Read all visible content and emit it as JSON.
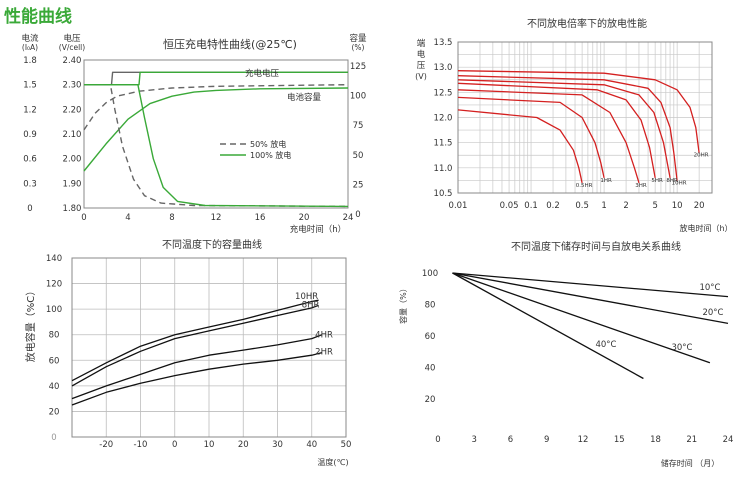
{
  "page_title": "性能曲线",
  "chart_data": [
    {
      "id": "c1",
      "type": "line",
      "title": "恒压充电特性曲线(@25℃)",
      "xlabel": "充电时间（h）",
      "x_ticks": [
        0,
        4,
        8,
        12,
        16,
        20,
        24
      ],
      "xlim": [
        0,
        24
      ],
      "left_axis1": {
        "label_lines": [
          "电流",
          "(I₀A)"
        ],
        "ticks": [
          "1.8",
          "1.5",
          "1.2",
          "0.9",
          "0.6",
          "0.3",
          "0"
        ],
        "range": [
          0,
          1.8
        ]
      },
      "left_axis2": {
        "label_lines": [
          "电压",
          "(V/cell)"
        ],
        "ticks": [
          "2.40",
          "2.30",
          "2.20",
          "2.10",
          "2.00",
          "1.90",
          "1.80"
        ],
        "range": [
          1.8,
          2.4
        ]
      },
      "right_axis": {
        "label_lines": [
          "容量",
          "(%)"
        ],
        "ticks": [
          "125",
          "100",
          "75",
          "50",
          "25",
          "0"
        ],
        "range": [
          0,
          125
        ]
      },
      "annotations": [
        "充电电压",
        "电池容量"
      ],
      "legend": [
        {
          "name": "50% 放电",
          "style": "dashed"
        },
        {
          "name": "100% 放电",
          "style": "solid"
        }
      ],
      "series": [
        {
          "name": "充电电压",
          "axis": "current",
          "color": "#666666",
          "style": "solid",
          "points": [
            [
              0,
              1.5
            ],
            [
              2.5,
              1.5
            ],
            [
              2.6,
              1.65
            ],
            [
              24,
              1.65
            ]
          ]
        },
        {
          "name": "充电电压",
          "axis": "current",
          "color": "#3aa938",
          "style": "solid",
          "points": [
            [
              0,
              1.5
            ],
            [
              5,
              1.5
            ],
            [
              5.1,
              1.65
            ],
            [
              24,
              1.65
            ]
          ]
        },
        {
          "name": "电池容量",
          "axis": "current",
          "color": "#666666",
          "style": "dashed",
          "points": [
            [
              0,
              0.95
            ],
            [
              1,
              1.15
            ],
            [
              2,
              1.28
            ],
            [
              3,
              1.36
            ],
            [
              5,
              1.42
            ],
            [
              8,
              1.46
            ],
            [
              12,
              1.48
            ],
            [
              24,
              1.5
            ]
          ]
        },
        {
          "name": "电池容量",
          "axis": "current",
          "color": "#3aa938",
          "style": "solid",
          "points": [
            [
              0,
              0.45
            ],
            [
              2,
              0.78
            ],
            [
              4,
              1.08
            ],
            [
              6,
              1.27
            ],
            [
              8,
              1.36
            ],
            [
              10,
              1.41
            ],
            [
              12,
              1.43
            ],
            [
              16,
              1.45
            ],
            [
              24,
              1.46
            ]
          ]
        },
        {
          "name": "50% 放电",
          "axis": "current",
          "color": "#666666",
          "style": "dashed",
          "points": [
            [
              0,
              1.5
            ],
            [
              2.4,
              1.5
            ],
            [
              2.8,
              1.2
            ],
            [
              3.5,
              0.75
            ],
            [
              4.5,
              0.35
            ],
            [
              5.5,
              0.15
            ],
            [
              7,
              0.06
            ],
            [
              10,
              0.03
            ],
            [
              24,
              0.02
            ]
          ]
        },
        {
          "name": "100% 放电",
          "axis": "current",
          "color": "#3aa938",
          "style": "solid",
          "points": [
            [
              0,
              1.5
            ],
            [
              4.9,
              1.5
            ],
            [
              5.5,
              1.1
            ],
            [
              6.3,
              0.6
            ],
            [
              7.2,
              0.25
            ],
            [
              8.5,
              0.08
            ],
            [
              11,
              0.03
            ],
            [
              24,
              0.02
            ]
          ]
        }
      ]
    },
    {
      "id": "c2",
      "type": "line",
      "title": "不同放电倍率下的放电性能",
      "xlabel": "放电时间（h）",
      "ylabel_lines": [
        "端",
        "电",
        "压",
        "(V)"
      ],
      "x_scale": "log",
      "xlim": [
        0.01,
        30
      ],
      "x_ticks": [
        {
          "v": 0.01,
          "l": "0.01"
        },
        {
          "v": 0.05,
          "l": "0.05"
        },
        {
          "v": 0.1,
          "l": "0.1"
        },
        {
          "v": 0.2,
          "l": "0.2"
        },
        {
          "v": 0.5,
          "l": "0.5"
        },
        {
          "v": 1,
          "l": "1"
        },
        {
          "v": 2,
          "l": "2"
        },
        {
          "v": 5,
          "l": "5"
        },
        {
          "v": 10,
          "l": "10"
        },
        {
          "v": 20,
          "l": "20"
        }
      ],
      "ylim": [
        10.5,
        13.5
      ],
      "y_ticks": [
        "13.5",
        "13.0",
        "12.5",
        "12.0",
        "11.5",
        "11.0",
        "10.5"
      ],
      "series": [
        {
          "name": "20HR",
          "color": "#d42020",
          "points": [
            [
              0.01,
              12.93
            ],
            [
              1,
              12.88
            ],
            [
              5,
              12.75
            ],
            [
              10,
              12.55
            ],
            [
              15,
              12.2
            ],
            [
              18,
              11.8
            ],
            [
              20,
              11.3
            ]
          ]
        },
        {
          "name": "10HR",
          "color": "#d42020",
          "points": [
            [
              0.01,
              12.83
            ],
            [
              1,
              12.75
            ],
            [
              4,
              12.58
            ],
            [
              6,
              12.3
            ],
            [
              8,
              11.8
            ],
            [
              9,
              11.3
            ],
            [
              10,
              10.75
            ]
          ]
        },
        {
          "name": "8HR",
          "color": "#d42020",
          "points": [
            [
              0.01,
              12.75
            ],
            [
              1,
              12.65
            ],
            [
              3,
              12.45
            ],
            [
              4.8,
              12.1
            ],
            [
              6.5,
              11.5
            ],
            [
              8,
              10.8
            ]
          ]
        },
        {
          "name": "5HR",
          "color": "#d42020",
          "points": [
            [
              0.01,
              12.68
            ],
            [
              0.8,
              12.55
            ],
            [
              2,
              12.35
            ],
            [
              3.2,
              11.95
            ],
            [
              4.2,
              11.4
            ],
            [
              5,
              10.8
            ]
          ]
        },
        {
          "name": "3HR",
          "color": "#d42020",
          "points": [
            [
              0.01,
              12.55
            ],
            [
              0.5,
              12.45
            ],
            [
              1.2,
              12.1
            ],
            [
              2,
              11.5
            ],
            [
              2.6,
              11.0
            ],
            [
              3,
              10.7
            ]
          ]
        },
        {
          "name": "1HR",
          "color": "#d42020",
          "points": [
            [
              0.01,
              12.4
            ],
            [
              0.25,
              12.3
            ],
            [
              0.5,
              12.0
            ],
            [
              0.75,
              11.5
            ],
            [
              0.9,
              11.1
            ],
            [
              1,
              10.8
            ]
          ]
        },
        {
          "name": "0.5HR",
          "color": "#d42020",
          "points": [
            [
              0.01,
              12.15
            ],
            [
              0.12,
              12.0
            ],
            [
              0.25,
              11.75
            ],
            [
              0.38,
              11.35
            ],
            [
              0.45,
              11.0
            ],
            [
              0.5,
              10.7
            ]
          ]
        }
      ]
    },
    {
      "id": "c3",
      "type": "line",
      "title": "不同温度下的容量曲线",
      "xlabel": "温度(℃)",
      "ylabel": "放电容量（%C）",
      "xlim": [
        -30,
        50
      ],
      "x_ticks": [
        -20,
        -10,
        0,
        10,
        20,
        30,
        40,
        50
      ],
      "ylim": [
        0,
        140
      ],
      "y_ticks": [
        140,
        120,
        100,
        80,
        60,
        40,
        20,
        0
      ],
      "series": [
        {
          "name": "10HR",
          "color": "#111111",
          "points": [
            [
              -30,
              44
            ],
            [
              -20,
              58
            ],
            [
              -10,
              71
            ],
            [
              0,
              80
            ],
            [
              10,
              86
            ],
            [
              20,
              92
            ],
            [
              30,
              99
            ],
            [
              40,
              106
            ],
            [
              42,
              107
            ]
          ]
        },
        {
          "name": "8HR",
          "color": "#111111",
          "points": [
            [
              -30,
              40
            ],
            [
              -20,
              55
            ],
            [
              -10,
              67
            ],
            [
              0,
              77
            ],
            [
              10,
              83
            ],
            [
              20,
              89
            ],
            [
              30,
              95
            ],
            [
              40,
              101
            ],
            [
              42,
              103
            ]
          ]
        },
        {
          "name": "4HR",
          "color": "#111111",
          "points": [
            [
              -30,
              30
            ],
            [
              -20,
              40
            ],
            [
              -10,
              49
            ],
            [
              0,
              58
            ],
            [
              10,
              64
            ],
            [
              20,
              68
            ],
            [
              30,
              72
            ],
            [
              40,
              77
            ],
            [
              43,
              80
            ]
          ]
        },
        {
          "name": "2HR",
          "color": "#111111",
          "points": [
            [
              -30,
              25
            ],
            [
              -20,
              35
            ],
            [
              -10,
              42
            ],
            [
              0,
              48
            ],
            [
              10,
              53
            ],
            [
              20,
              57
            ],
            [
              30,
              60
            ],
            [
              40,
              64
            ],
            [
              43,
              66
            ]
          ]
        }
      ]
    },
    {
      "id": "c4",
      "type": "line",
      "title": "不同温度下储存时间与自放电关系曲线",
      "xlabel": "储存时间 （月）",
      "ylabel": "容量（%）",
      "xlim": [
        0,
        24
      ],
      "x_ticks": [
        0,
        3,
        6,
        9,
        12,
        15,
        18,
        21,
        24
      ],
      "ylim": [
        20,
        100
      ],
      "y_ticks": [
        100,
        80,
        60,
        40,
        20
      ],
      "series": [
        {
          "name": "10°C",
          "color": "#111111",
          "points": [
            [
              1.2,
              100
            ],
            [
              24,
              85
            ]
          ]
        },
        {
          "name": "20°C",
          "color": "#111111",
          "points": [
            [
              1.2,
              100
            ],
            [
              24,
              68
            ]
          ]
        },
        {
          "name": "30°C",
          "color": "#111111",
          "points": [
            [
              1.2,
              100
            ],
            [
              22.5,
              43
            ]
          ]
        },
        {
          "name": "40°C",
          "color": "#111111",
          "points": [
            [
              1.2,
              100
            ],
            [
              17,
              33
            ]
          ]
        }
      ]
    }
  ]
}
